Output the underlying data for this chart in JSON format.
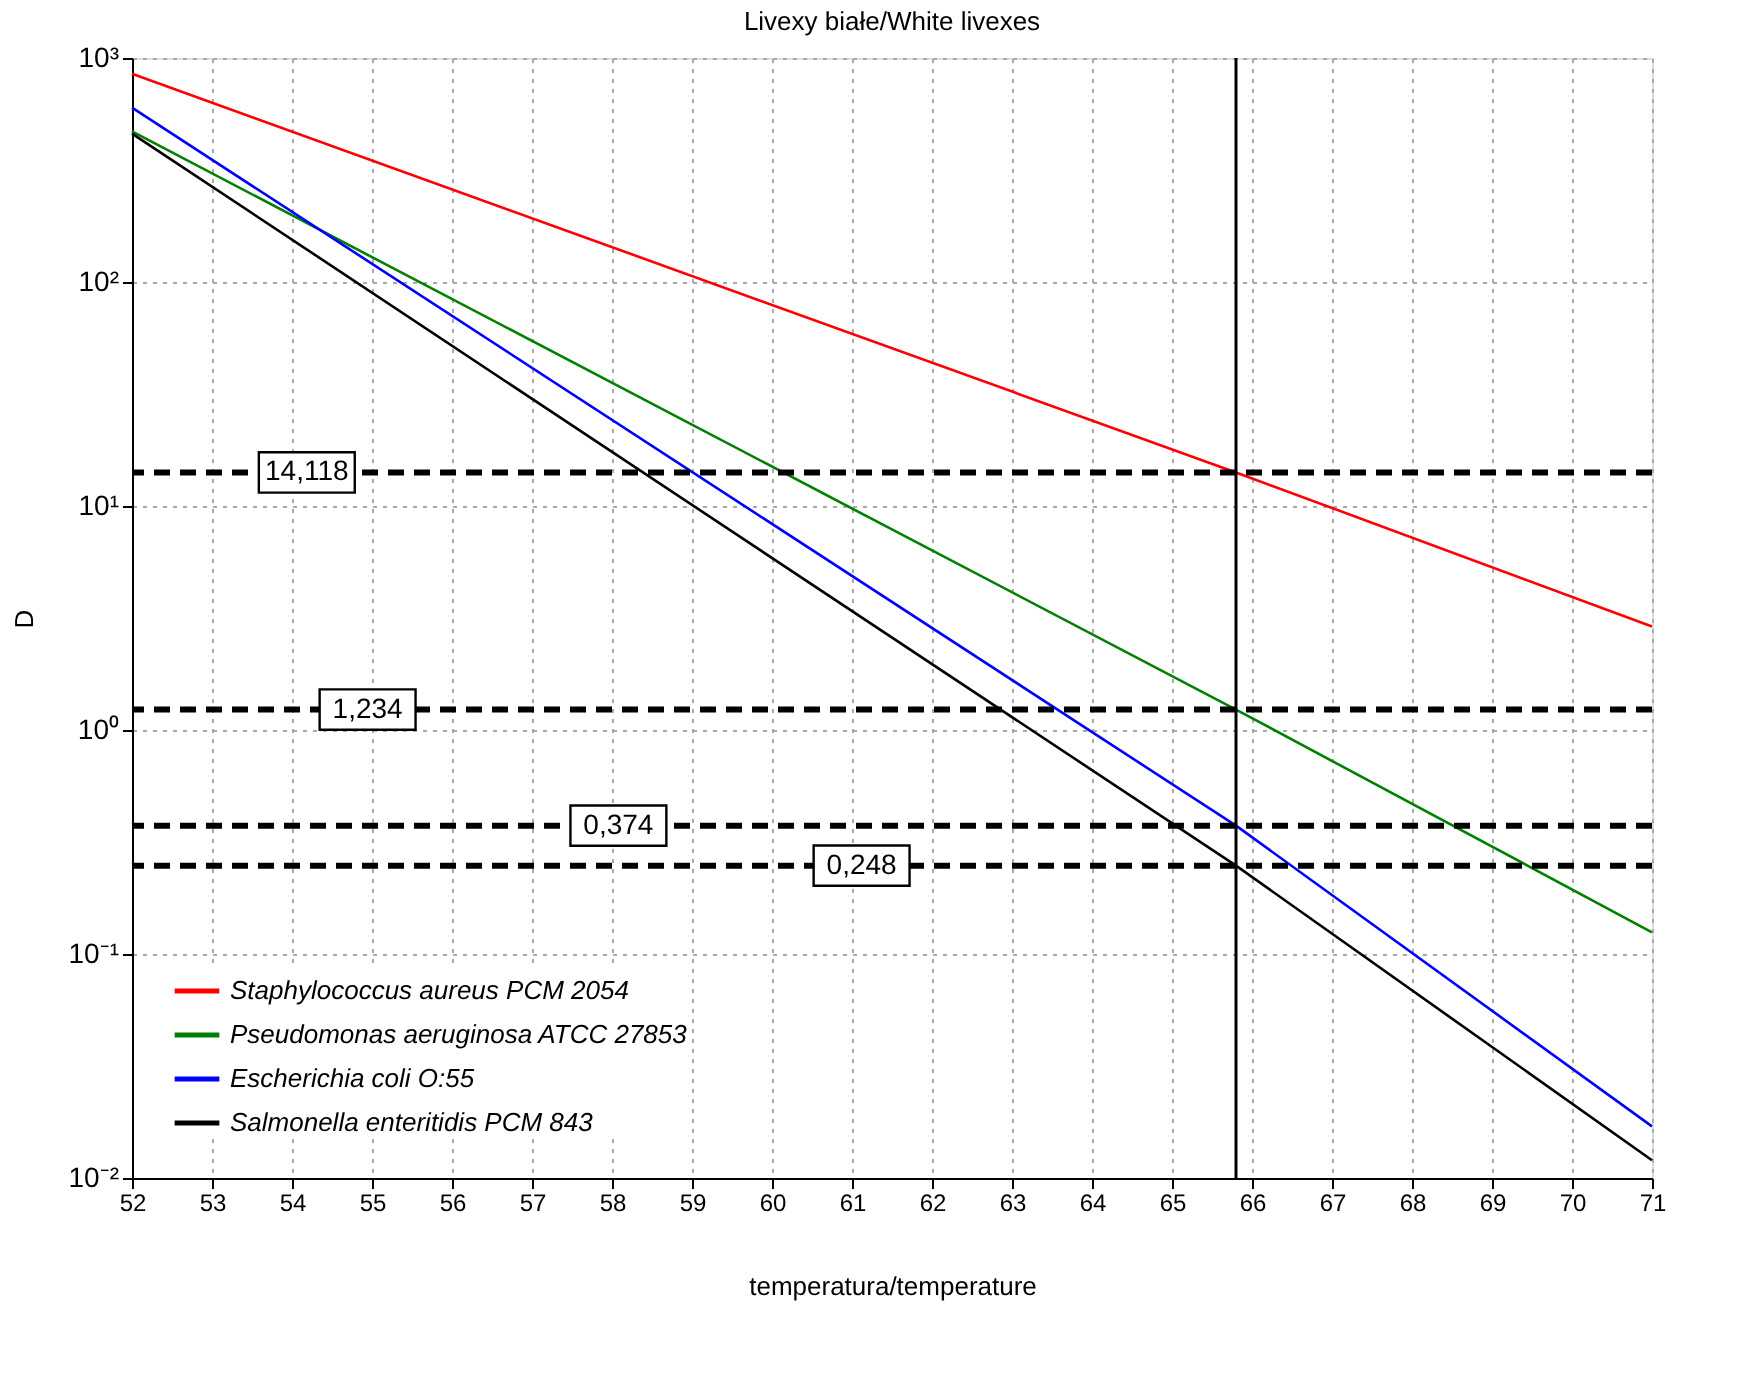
{
  "chart_data": {
    "type": "line",
    "title": "Livexy białe/White livexes",
    "xlabel": "temperatura/temperature",
    "ylabel": "D",
    "x": [
      52,
      65.8,
      71
    ],
    "series": [
      {
        "name": "Staphylococcus aureus PCM 2054",
        "color": "#ff0000",
        "values": [
          850,
          14.118,
          2.9
        ]
      },
      {
        "name": "Pseudomonas aeruginosa ATCC 27853",
        "color": "#008000",
        "values": [
          470,
          1.234,
          0.125
        ]
      },
      {
        "name": "Escherichia coli O:55",
        "color": "#0000ff",
        "values": [
          600,
          0.374,
          0.017
        ]
      },
      {
        "name": "Salmonella enteritidis PCM 843",
        "color": "#000000",
        "values": [
          460,
          0.248,
          0.012
        ]
      }
    ],
    "log": "y",
    "xlim": [
      52,
      71
    ],
    "xticks": [
      52,
      53,
      54,
      55,
      56,
      57,
      58,
      59,
      60,
      61,
      62,
      63,
      64,
      65,
      66,
      67,
      68,
      69,
      70,
      71
    ],
    "ylim": [
      0.01,
      1000
    ],
    "yticks": [
      {
        "value": 0.01,
        "label": "10⁻²"
      },
      {
        "value": 0.1,
        "label": "10⁻¹"
      },
      {
        "value": 1,
        "label": "10⁰"
      },
      {
        "value": 10,
        "label": "10¹"
      },
      {
        "value": 100,
        "label": "10²"
      },
      {
        "value": 1000,
        "label": "10³"
      }
    ],
    "ref_lines": [
      {
        "axis": "x",
        "value": 65.8,
        "color": "#000000",
        "line_style": "solid"
      },
      {
        "axis": "y",
        "value": 14.118,
        "label": "14,118",
        "color": "#000000",
        "line_style": "dashed"
      },
      {
        "axis": "y",
        "value": 1.234,
        "label": "1,234",
        "color": "#000000",
        "line_style": "dashed"
      },
      {
        "axis": "y",
        "value": 0.374,
        "label": "0,374",
        "color": "#000000",
        "line_style": "dashed"
      },
      {
        "axis": "y",
        "value": 0.248,
        "label": "0,248",
        "color": "#000000",
        "line_style": "dashed"
      }
    ],
    "grid": true,
    "legend": "bottom left",
    "line_style": "solid",
    "marker": "none"
  }
}
